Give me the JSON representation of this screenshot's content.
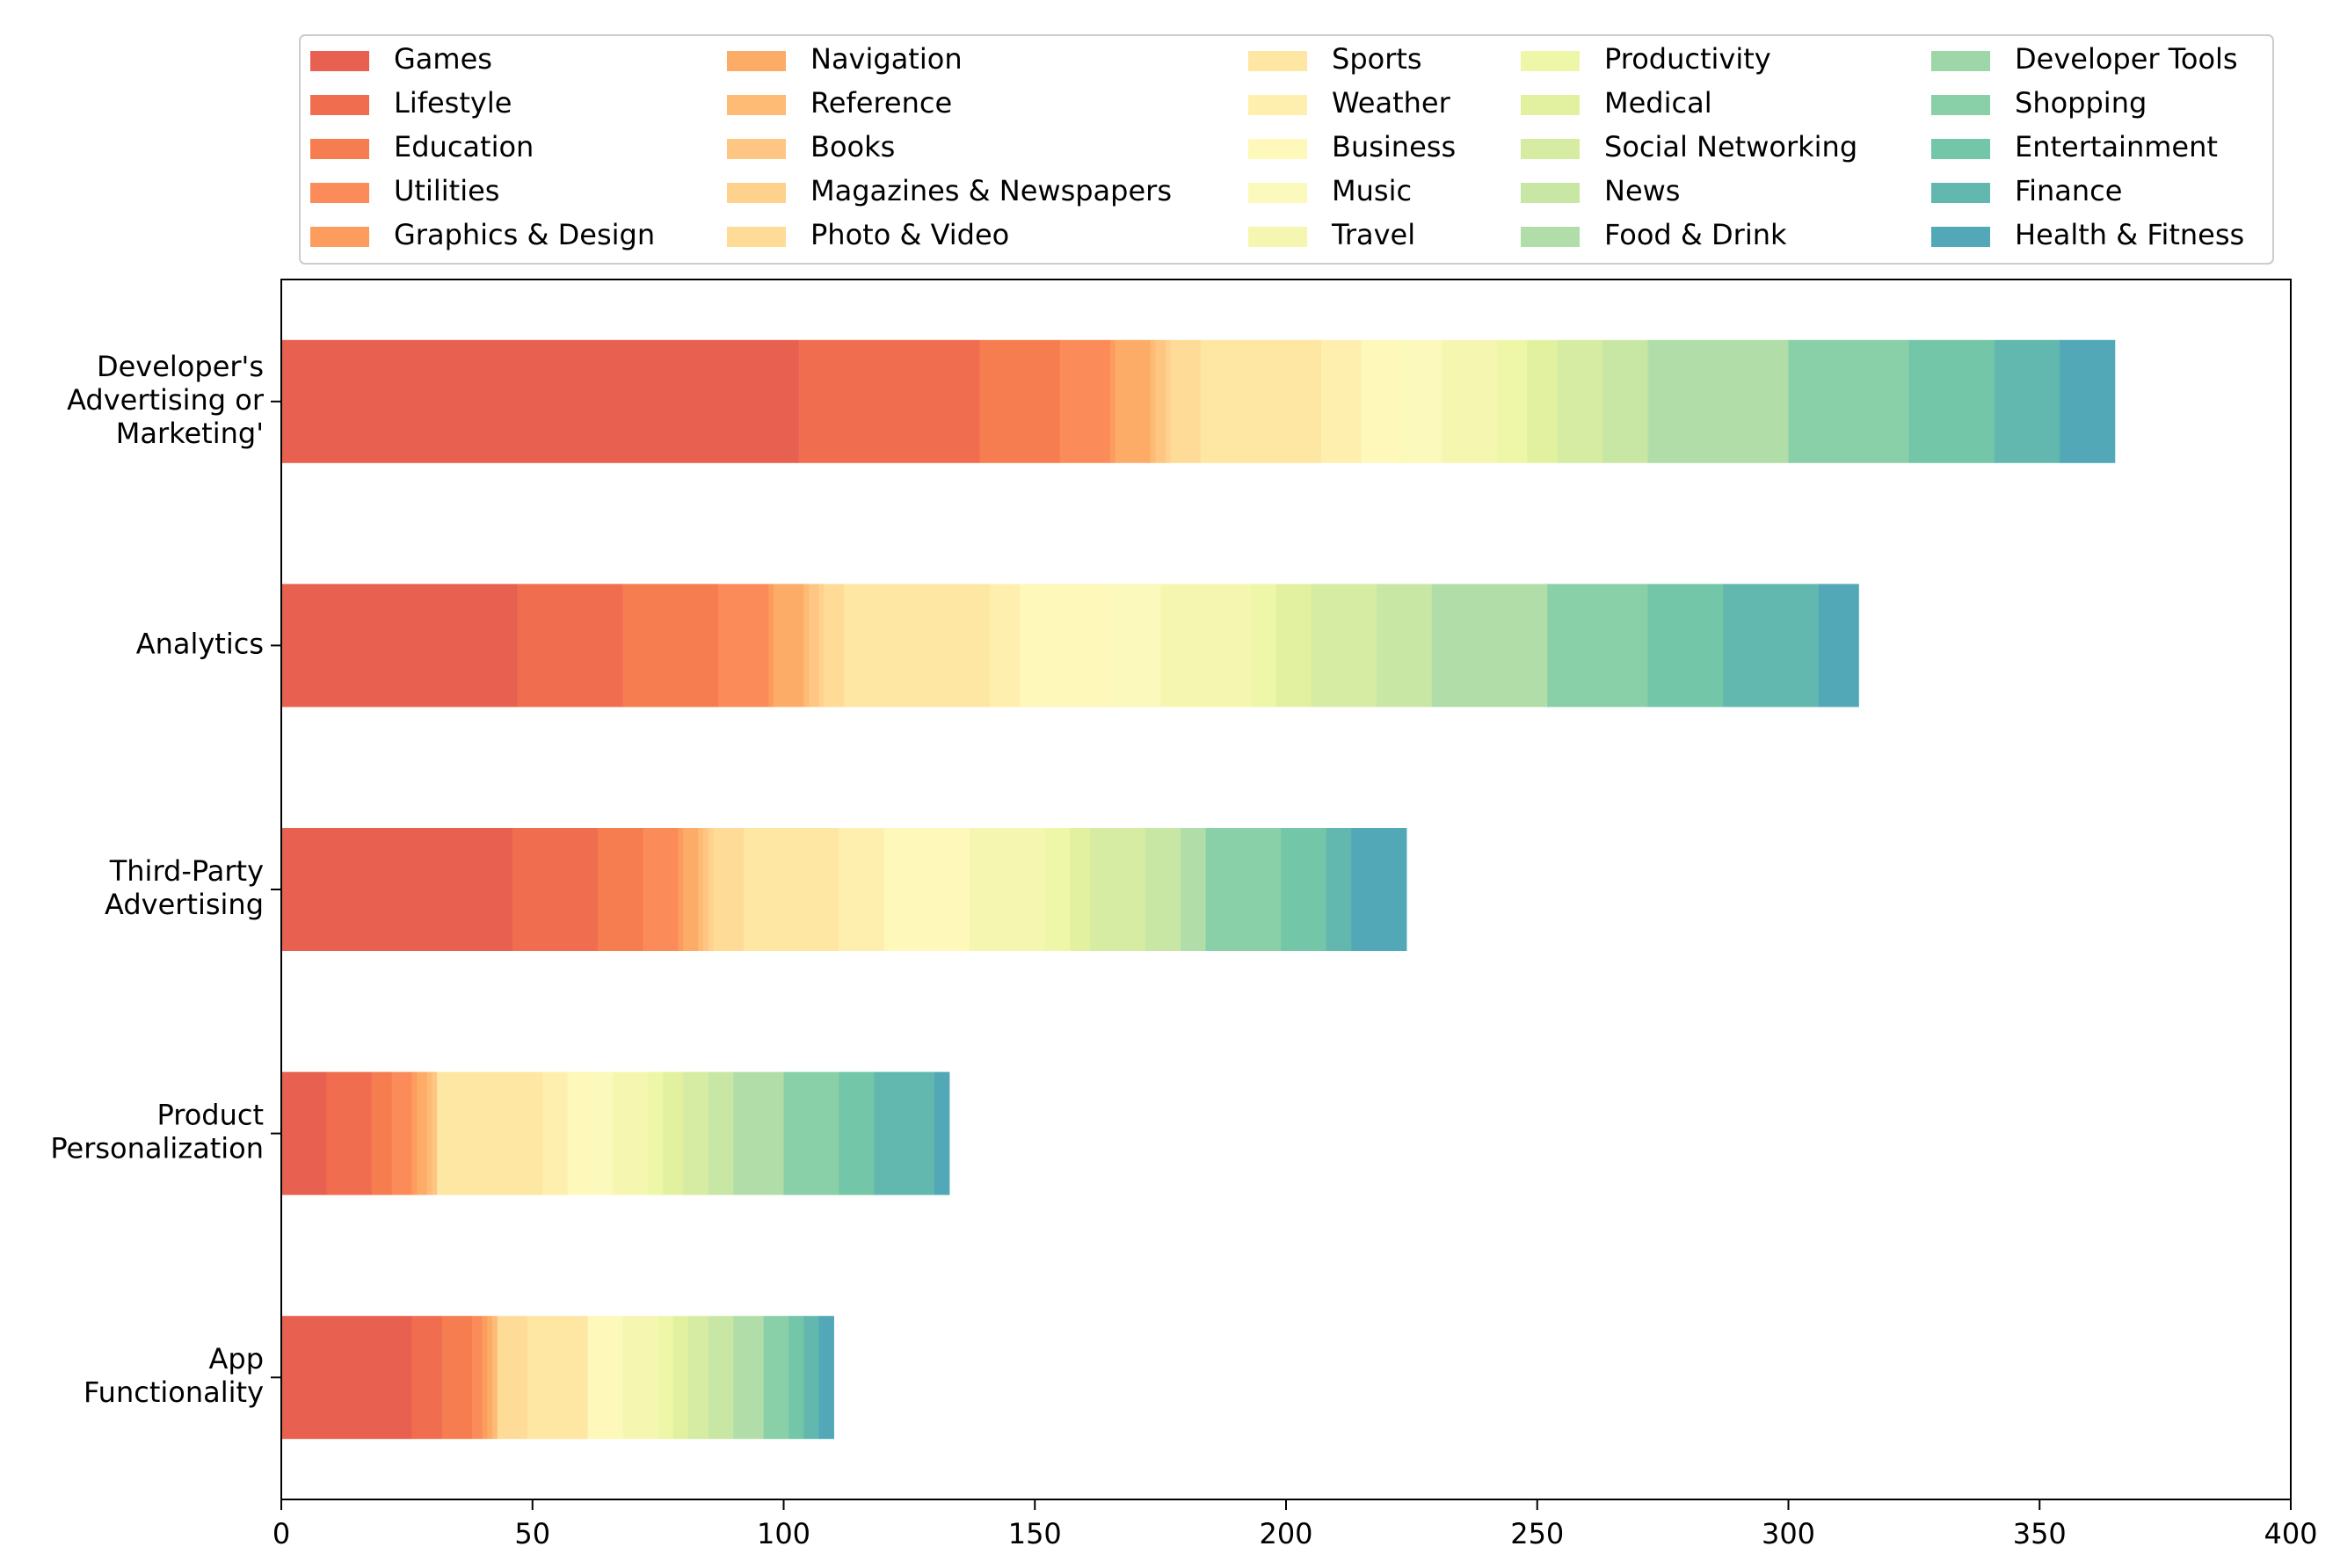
{
  "chart_data": {
    "type": "bar",
    "orientation": "horizontal",
    "stacked": true,
    "title": "",
    "xlabel": "",
    "ylabel": "",
    "xlim": [
      0,
      400
    ],
    "xticks": [
      0,
      50,
      100,
      150,
      200,
      250,
      300,
      350,
      400
    ],
    "grid": false,
    "legend_position": "top",
    "categories": [
      {
        "label": [
          "Developer's",
          "Advertising or",
          "Marketing'"
        ]
      },
      {
        "label": [
          "Analytics"
        ]
      },
      {
        "label": [
          "Third-Party",
          "Advertising"
        ]
      },
      {
        "label": [
          "Product",
          "Personalization"
        ]
      },
      {
        "label": [
          "App",
          "Functionality"
        ]
      }
    ],
    "series": [
      {
        "name": "Games",
        "color": "#e8604f",
        "values": [
          103,
          47,
          46,
          9,
          26
        ]
      },
      {
        "name": "Lifestyle",
        "color": "#f06d4f",
        "values": [
          36,
          21,
          17,
          9,
          6
        ]
      },
      {
        "name": "Education",
        "color": "#f67d50",
        "values": [
          16,
          19,
          9,
          4,
          6
        ]
      },
      {
        "name": "Utilities",
        "color": "#fb8c5a",
        "values": [
          10,
          10,
          7,
          4,
          2
        ]
      },
      {
        "name": "Graphics & Design",
        "color": "#fd9c5f",
        "values": [
          1,
          1,
          1,
          1,
          1
        ]
      },
      {
        "name": "Navigation",
        "color": "#fdac67",
        "values": [
          7,
          6,
          3,
          2,
          1
        ]
      },
      {
        "name": "Reference",
        "color": "#fdbb76",
        "values": [
          1,
          1,
          1,
          1,
          1
        ]
      },
      {
        "name": "Books",
        "color": "#fec682",
        "values": [
          2,
          2,
          1,
          1,
          0
        ]
      },
      {
        "name": "Magazines & Newspapers",
        "color": "#fed18c",
        "values": [
          1,
          1,
          1,
          0,
          0
        ]
      },
      {
        "name": "Photo & Video",
        "color": "#fedc98",
        "values": [
          6,
          4,
          6,
          0,
          6
        ]
      },
      {
        "name": "Sports",
        "color": "#fee6a3",
        "values": [
          24,
          29,
          19,
          21,
          12
        ]
      },
      {
        "name": "Weather",
        "color": "#ffefae",
        "values": [
          8,
          6,
          9,
          5,
          0
        ]
      },
      {
        "name": "Business",
        "color": "#fef8ba",
        "values": [
          8,
          18,
          17,
          5,
          6
        ]
      },
      {
        "name": "Music",
        "color": "#fbf9bb",
        "values": [
          8,
          10,
          0,
          4,
          1
        ]
      },
      {
        "name": "Travel",
        "color": "#f5f7b1",
        "values": [
          11,
          18,
          15,
          7,
          7
        ]
      },
      {
        "name": "Productivity",
        "color": "#eef6a8",
        "values": [
          6,
          5,
          5,
          3,
          3
        ]
      },
      {
        "name": "Medical",
        "color": "#e2f1a0",
        "values": [
          6,
          7,
          4,
          4,
          3
        ]
      },
      {
        "name": "Social Networking",
        "color": "#d6eca2",
        "values": [
          9,
          13,
          11,
          5,
          4
        ]
      },
      {
        "name": "News",
        "color": "#c9e7a4",
        "values": [
          9,
          11,
          7,
          5,
          5
        ]
      },
      {
        "name": "Food & Drink",
        "color": "#b1dea8",
        "values": [
          28,
          23,
          5,
          10,
          6
        ]
      },
      {
        "name": "Developer Tools",
        "color": "#9dd6a7",
        "values": [
          0,
          0,
          0,
          0,
          0
        ]
      },
      {
        "name": "Shopping",
        "color": "#89cfa8",
        "values": [
          24,
          20,
          15,
          11,
          5
        ]
      },
      {
        "name": "Entertainment",
        "color": "#73c6a8",
        "values": [
          17,
          15,
          9,
          7,
          3
        ]
      },
      {
        "name": "Finance",
        "color": "#62b8ae",
        "values": [
          13,
          19,
          5,
          12,
          3
        ]
      },
      {
        "name": "Health & Fitness",
        "color": "#52a8b6",
        "values": [
          11,
          8,
          11,
          3,
          3
        ]
      }
    ]
  }
}
